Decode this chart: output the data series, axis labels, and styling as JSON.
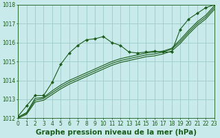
{
  "title": "Graphe pression niveau de la mer (hPa)",
  "bg_color": "#c8eaea",
  "grid_color": "#9fc9c9",
  "line_color": "#1a5c1a",
  "xlim": [
    0,
    23
  ],
  "ylim": [
    1012,
    1018
  ],
  "xticks": [
    0,
    1,
    2,
    3,
    4,
    5,
    6,
    7,
    8,
    9,
    10,
    11,
    12,
    13,
    14,
    15,
    16,
    17,
    18,
    19,
    20,
    21,
    22,
    23
  ],
  "yticks": [
    1012,
    1013,
    1014,
    1015,
    1016,
    1017,
    1018
  ],
  "s_marked": [
    1012.1,
    1012.65,
    1013.2,
    1013.2,
    1013.9,
    1014.85,
    1015.45,
    1015.85,
    1016.15,
    1016.2,
    1016.32,
    1016.0,
    1015.85,
    1015.5,
    1015.45,
    1015.5,
    1015.55,
    1015.5,
    1015.5,
    1016.7,
    1017.25,
    1017.55,
    1017.85,
    1018.0
  ],
  "s_straight1": [
    1012.05,
    1012.3,
    1013.05,
    1013.1,
    1013.45,
    1013.75,
    1014.0,
    1014.2,
    1014.4,
    1014.6,
    1014.8,
    1015.0,
    1015.15,
    1015.25,
    1015.35,
    1015.45,
    1015.5,
    1015.55,
    1015.7,
    1016.15,
    1016.65,
    1017.1,
    1017.45,
    1017.95
  ],
  "s_straight2": [
    1012.05,
    1012.25,
    1012.95,
    1013.05,
    1013.35,
    1013.65,
    1013.9,
    1014.1,
    1014.3,
    1014.5,
    1014.7,
    1014.9,
    1015.05,
    1015.15,
    1015.25,
    1015.35,
    1015.4,
    1015.5,
    1015.65,
    1016.05,
    1016.55,
    1017.0,
    1017.35,
    1017.85
  ],
  "s_straight3": [
    1012.0,
    1012.2,
    1012.85,
    1012.95,
    1013.25,
    1013.55,
    1013.8,
    1014.0,
    1014.2,
    1014.4,
    1014.6,
    1014.8,
    1014.95,
    1015.05,
    1015.15,
    1015.25,
    1015.3,
    1015.4,
    1015.55,
    1015.95,
    1016.45,
    1016.9,
    1017.25,
    1017.75
  ],
  "title_fontsize": 7.5,
  "tick_fontsize": 5.5
}
